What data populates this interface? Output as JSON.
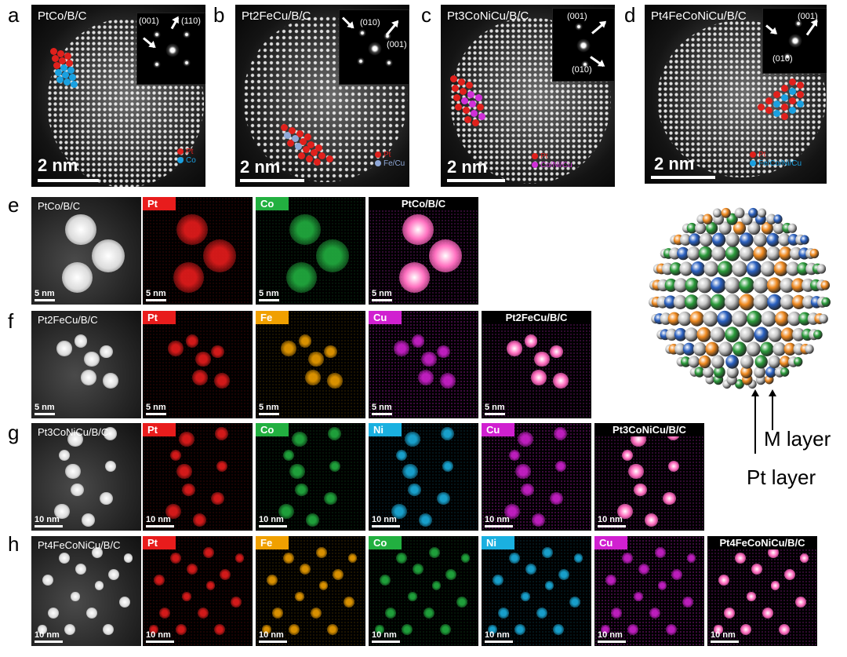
{
  "panel_letters": [
    "a",
    "b",
    "c",
    "d",
    "e",
    "f",
    "g",
    "h"
  ],
  "top_panels": [
    {
      "title": "PtCo/B/C",
      "title_html": "PtCo/B/C",
      "scale": "2 nm",
      "fft": [
        "(001)",
        "(110)"
      ],
      "legend": [
        {
          "label": "Pt",
          "color": "#e0201c"
        },
        {
          "label": "Co",
          "color": "#1aa0e0"
        }
      ]
    },
    {
      "title": "Pt2FeCu/B/C",
      "scale": "2 nm",
      "fft": [
        "(010)",
        "(001)"
      ],
      "legend": [
        {
          "label": "Pt",
          "color": "#e0201c"
        },
        {
          "label": "Fe/Cu",
          "color": "#8fa8d8"
        }
      ]
    },
    {
      "title": "Pt3CoNiCu/B/C",
      "scale": "2 nm",
      "fft": [
        "(001)",
        "(010)"
      ],
      "legend": [
        {
          "label": "Pt",
          "color": "#e0201c"
        },
        {
          "label": "Co/Ni/Cu",
          "color": "#d030d8"
        }
      ]
    },
    {
      "title": "Pt4FeCoNiCu/B/C",
      "scale": "2 nm",
      "fft": [
        "(001)",
        "(010)"
      ],
      "legend": [
        {
          "label": "Pt",
          "color": "#e0201c"
        },
        {
          "label": "Fe/Co/Ni/Cu",
          "color": "#1aa0e0"
        }
      ]
    }
  ],
  "map_rows": [
    {
      "letter": "e",
      "title": "PtCo/B/C",
      "scale": "5 nm",
      "elements": [
        "Pt",
        "Co"
      ],
      "merge": "PtCo/B/C"
    },
    {
      "letter": "f",
      "title": "Pt2FeCu/B/C",
      "scale": "5 nm",
      "elements": [
        "Pt",
        "Fe",
        "Cu"
      ],
      "merge": "Pt2FeCu/B/C"
    },
    {
      "letter": "g",
      "title": "Pt3CoNiCu/B/C",
      "scale": "10 nm",
      "elements": [
        "Pt",
        "Co",
        "Ni",
        "Cu"
      ],
      "merge": "Pt3CoNiCu/B/C"
    },
    {
      "letter": "h",
      "title": "Pt4FeCoNiCu/B/C",
      "scale": "10 nm",
      "elements": [
        "Pt",
        "Fe",
        "Co",
        "Ni",
        "Cu"
      ],
      "merge": "Pt4FeCoNiCu/B/C"
    }
  ],
  "element_colors": {
    "Pt": "#e81c1c",
    "Co": "#22b040",
    "Fe": "#f0a000",
    "Cu": "#d020d0",
    "Ni": "#1ab0e0"
  },
  "model": {
    "m_layer": "M layer",
    "pt_layer": "Pt layer",
    "colors": [
      "#f08a20",
      "#2a9a3a",
      "#2a60c0",
      "#c8c8c8"
    ]
  }
}
